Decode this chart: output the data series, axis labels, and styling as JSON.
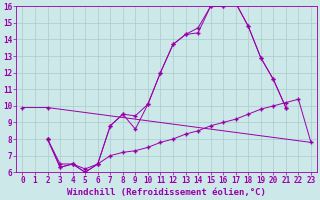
{
  "xlabel": "Windchill (Refroidissement éolien,°C)",
  "bg_color": "#cce8e8",
  "line_color": "#9900aa",
  "grid_color": "#aacccc",
  "xlim": [
    -0.5,
    23.5
  ],
  "ylim": [
    6,
    16
  ],
  "xticks": [
    0,
    1,
    2,
    3,
    4,
    5,
    6,
    7,
    8,
    9,
    10,
    11,
    12,
    13,
    14,
    15,
    16,
    17,
    18,
    19,
    20,
    21,
    22,
    23
  ],
  "yticks": [
    6,
    7,
    8,
    9,
    10,
    11,
    12,
    13,
    14,
    15,
    16
  ],
  "line1_x": [
    0,
    2,
    23
  ],
  "line1_y": [
    9.9,
    9.9,
    7.8
  ],
  "line2_x": [
    2,
    3,
    4,
    5,
    6,
    7,
    8,
    9,
    10,
    11,
    12,
    13,
    14,
    15,
    16,
    17,
    18,
    19,
    20,
    21
  ],
  "line2_y": [
    8.0,
    6.3,
    6.5,
    6.0,
    6.5,
    8.8,
    9.5,
    9.4,
    10.1,
    12.0,
    13.7,
    14.3,
    14.7,
    16.0,
    16.0,
    16.2,
    14.8,
    12.9,
    11.6,
    9.9
  ],
  "line3_x": [
    2,
    3,
    4,
    5,
    6,
    7,
    8,
    9,
    10,
    11,
    12,
    13,
    14,
    15,
    16,
    17,
    18,
    19,
    20,
    21
  ],
  "line3_y": [
    8.0,
    6.3,
    6.5,
    6.0,
    6.5,
    8.8,
    9.5,
    8.6,
    10.1,
    12.0,
    13.7,
    14.3,
    14.4,
    16.0,
    16.0,
    16.2,
    14.8,
    12.9,
    11.6,
    9.9
  ],
  "line4_x": [
    2,
    3,
    4,
    5,
    6,
    7,
    8,
    9,
    10,
    11,
    12,
    13,
    14,
    15,
    16,
    17,
    18,
    19,
    20,
    21,
    22,
    23
  ],
  "line4_y": [
    8.0,
    6.5,
    6.5,
    6.2,
    6.5,
    7.0,
    7.2,
    7.3,
    7.5,
    7.8,
    8.0,
    8.3,
    8.5,
    8.8,
    9.0,
    9.2,
    9.5,
    9.8,
    10.0,
    10.2,
    10.4,
    7.8
  ],
  "fontsize_ticks": 5.5,
  "fontsize_label": 6.5
}
